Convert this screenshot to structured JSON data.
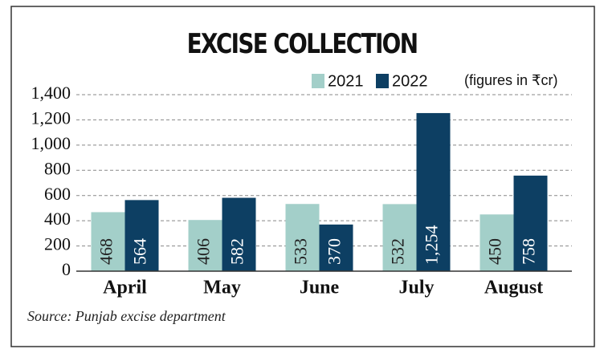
{
  "chart_data": {
    "type": "bar",
    "title": "EXCISE COLLECTION",
    "note": "(figures in ₹cr)",
    "source": "Source: Punjab excise department",
    "categories": [
      "April",
      "May",
      "June",
      "July",
      "August"
    ],
    "series": [
      {
        "name": "2021",
        "color": "#a3cfc9",
        "values": [
          468,
          406,
          533,
          532,
          450
        ],
        "value_labels": [
          "468",
          "406",
          "533",
          "532",
          "450"
        ]
      },
      {
        "name": "2022",
        "color": "#0d3f63",
        "values": [
          564,
          582,
          370,
          1254,
          758
        ],
        "value_labels": [
          "564",
          "582",
          "370",
          "1,254",
          "758"
        ]
      }
    ],
    "ylim": [
      0,
      1400
    ],
    "yticks": [
      0,
      200,
      400,
      600,
      800,
      {
        "value": 1000,
        "label": "1,000"
      },
      {
        "value": 1200,
        "label": "1,200"
      },
      {
        "value": 1400,
        "label": "1,400"
      }
    ],
    "grid": true
  }
}
